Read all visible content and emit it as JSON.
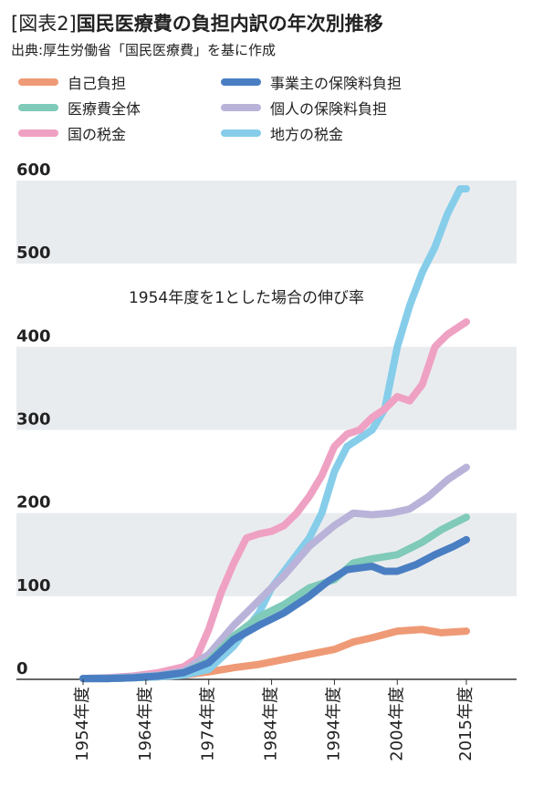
{
  "header": {
    "title_tag": "[図表2]",
    "title": "国民医療費の負担内訳の年次別推移",
    "source": "出典:厚生労働省「国民医療費」を基に作成"
  },
  "colors": {
    "self": "#ef9a76",
    "employer": "#4a7ec2",
    "total": "#7fcab8",
    "individual": "#b9b3d9",
    "national_tax": "#efa1c3",
    "local_tax": "#86cdea",
    "band": "#e9ecef"
  },
  "chart_data": {
    "type": "line",
    "annotation": "1954年度を1とした場合の伸び率",
    "ylim": [
      0,
      600
    ],
    "yticks": [
      0,
      100,
      200,
      300,
      400,
      500,
      600
    ],
    "xlim": [
      1954,
      2015
    ],
    "xtick_values": [
      1954,
      1964,
      1974,
      1984,
      1994,
      2004,
      2015
    ],
    "xtick_labels": [
      "1954年度",
      "1964年度",
      "1974年度",
      "1984年度",
      "1994年度",
      "2004年度",
      "2015年度"
    ],
    "grid": "alternating horizontal bands",
    "legend_position": "top",
    "series": [
      {
        "key": "self",
        "name": "自己負担",
        "x": [
          1954,
          1958,
          1962,
          1966,
          1970,
          1974,
          1978,
          1982,
          1986,
          1990,
          1994,
          1997,
          2000,
          2004,
          2008,
          2011,
          2015
        ],
        "y": [
          1,
          1,
          2,
          3,
          5,
          9,
          14,
          18,
          24,
          30,
          36,
          45,
          50,
          58,
          60,
          56,
          58
        ]
      },
      {
        "key": "employer",
        "name": "事業主の保険料負担",
        "x": [
          1954,
          1958,
          1962,
          1966,
          1970,
          1974,
          1978,
          1982,
          1986,
          1990,
          1993,
          1996,
          1998,
          2000,
          2002,
          2004,
          2007,
          2010,
          2013,
          2015
        ],
        "y": [
          1,
          1,
          2,
          4,
          8,
          20,
          48,
          65,
          80,
          100,
          118,
          132,
          134,
          136,
          130,
          130,
          138,
          150,
          160,
          168
        ]
      },
      {
        "key": "total",
        "name": "医療費全体",
        "x": [
          1954,
          1958,
          1962,
          1966,
          1970,
          1974,
          1978,
          1982,
          1986,
          1990,
          1994,
          1997,
          2000,
          2004,
          2008,
          2011,
          2015
        ],
        "y": [
          1,
          1,
          2,
          4,
          8,
          22,
          52,
          75,
          90,
          110,
          120,
          140,
          145,
          150,
          165,
          180,
          195
        ]
      },
      {
        "key": "individual",
        "name": "個人の保険料負担",
        "x": [
          1954,
          1958,
          1962,
          1966,
          1970,
          1974,
          1978,
          1982,
          1986,
          1990,
          1994,
          1997,
          2000,
          2003,
          2006,
          2009,
          2012,
          2015
        ],
        "y": [
          1,
          2,
          3,
          5,
          10,
          30,
          65,
          95,
          125,
          160,
          185,
          200,
          198,
          200,
          205,
          220,
          240,
          255
        ]
      },
      {
        "key": "national_tax",
        "name": "国の税金",
        "x": [
          1954,
          1958,
          1962,
          1966,
          1970,
          1972,
          1974,
          1976,
          1978,
          1980,
          1982,
          1984,
          1986,
          1988,
          1990,
          1992,
          1994,
          1996,
          1998,
          2000,
          2002,
          2004,
          2006,
          2008,
          2010,
          2012,
          2015
        ],
        "y": [
          1,
          2,
          4,
          8,
          15,
          25,
          60,
          105,
          140,
          170,
          175,
          178,
          185,
          200,
          220,
          245,
          280,
          295,
          300,
          315,
          325,
          340,
          335,
          355,
          400,
          415,
          430
        ]
      },
      {
        "key": "local_tax",
        "name": "地方の税金",
        "x": [
          1954,
          1958,
          1962,
          1966,
          1970,
          1974,
          1978,
          1982,
          1984,
          1986,
          1988,
          1990,
          1992,
          1994,
          1996,
          1998,
          2000,
          2002,
          2004,
          2006,
          2008,
          2010,
          2012,
          2014,
          2015
        ],
        "y": [
          1,
          1,
          2,
          3,
          5,
          12,
          40,
          80,
          110,
          130,
          150,
          170,
          200,
          250,
          280,
          290,
          300,
          325,
          400,
          450,
          490,
          520,
          560,
          590,
          590
        ]
      }
    ]
  }
}
